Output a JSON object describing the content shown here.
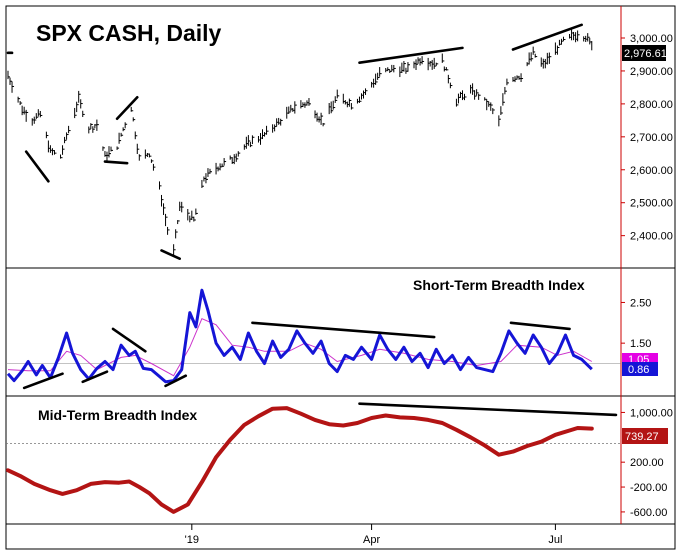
{
  "colors": {
    "axis_line": "#cc0000",
    "price_bars": "#000000",
    "st_breadth": "#1515d6",
    "st_signal": "#cc33cc",
    "mt_breadth": "#b31414",
    "trendline": "#000000",
    "badge_dark": "#000000",
    "badge_blue": "#1515d6",
    "badge_magenta": "#e400e4",
    "badge_red": "#b31414"
  },
  "chart_data": [
    {
      "type": "ohlc",
      "title": "SPX CASH, Daily",
      "y_ticks": [
        "3,000.00",
        "2,900.00",
        "2,800.00",
        "2,700.00",
        "2,600.00",
        "2,500.00",
        "2,400.00"
      ],
      "y_tick_values": [
        3000,
        2900,
        2800,
        2700,
        2600,
        2500,
        2400
      ],
      "ylim": [
        2320,
        3085
      ],
      "last_value_label": "2,976.61",
      "last_value": 2976.61,
      "x_labels": [
        "'19",
        "Apr",
        "Jul"
      ],
      "x_label_positions": [
        "2019-01-02",
        "2019-04-01",
        "2019-07-01"
      ],
      "x_range": [
        "2018-10-03",
        "2019-07-31"
      ],
      "series": [
        {
          "values": [
            [
              "2018-10-03",
              2888
            ],
            [
              "2018-10-10",
              2785
            ],
            [
              "2018-10-15",
              2752
            ],
            [
              "2018-10-19",
              2768
            ],
            [
              "2018-10-24",
              2656
            ],
            [
              "2018-10-29",
              2641
            ],
            [
              "2018-11-02",
              2723
            ],
            [
              "2018-11-07",
              2813
            ],
            [
              "2018-11-12",
              2726
            ],
            [
              "2018-11-16",
              2736
            ],
            [
              "2018-11-20",
              2641
            ],
            [
              "2018-11-26",
              2673
            ],
            [
              "2018-12-03",
              2790
            ],
            [
              "2018-12-07",
              2633
            ],
            [
              "2018-12-12",
              2651
            ],
            [
              "2018-12-17",
              2545
            ],
            [
              "2018-12-21",
              2416
            ],
            [
              "2018-12-24",
              2351
            ],
            [
              "2018-12-27",
              2488
            ],
            [
              "2019-01-03",
              2447
            ],
            [
              "2019-01-08",
              2574
            ],
            [
              "2019-01-15",
              2610
            ],
            [
              "2019-01-22",
              2633
            ],
            [
              "2019-01-30",
              2681
            ],
            [
              "2019-02-07",
              2706
            ],
            [
              "2019-02-14",
              2745
            ],
            [
              "2019-02-22",
              2792
            ],
            [
              "2019-03-01",
              2803
            ],
            [
              "2019-03-08",
              2743
            ],
            [
              "2019-03-15",
              2822
            ],
            [
              "2019-03-22",
              2800
            ],
            [
              "2019-03-29",
              2834
            ],
            [
              "2019-04-05",
              2892
            ],
            [
              "2019-04-12",
              2907
            ],
            [
              "2019-04-19",
              2905
            ],
            [
              "2019-04-26",
              2940
            ],
            [
              "2019-05-01",
              2923
            ],
            [
              "2019-05-06",
              2932
            ],
            [
              "2019-05-13",
              2811
            ],
            [
              "2019-05-20",
              2840
            ],
            [
              "2019-05-24",
              2826
            ],
            [
              "2019-05-30",
              2788
            ],
            [
              "2019-06-03",
              2744
            ],
            [
              "2019-06-07",
              2873
            ],
            [
              "2019-06-14",
              2887
            ],
            [
              "2019-06-20",
              2954
            ],
            [
              "2019-06-25",
              2917
            ],
            [
              "2019-07-01",
              2964
            ],
            [
              "2019-07-05",
              2990
            ],
            [
              "2019-07-12",
              3013
            ],
            [
              "2019-07-16",
              3004
            ],
            [
              "2019-07-19",
              2976.61
            ]
          ]
        }
      ],
      "trendlines": [
        [
          "2018-10-03",
          2955,
          "2018-10-05",
          2955
        ],
        [
          "2018-10-12",
          2655,
          "2018-10-23",
          2565
        ],
        [
          "2018-11-20",
          2625,
          "2018-12-01",
          2620
        ],
        [
          "2018-11-26",
          2755,
          "2018-12-06",
          2820
        ],
        [
          "2018-12-18",
          2355,
          "2018-12-27",
          2330
        ],
        [
          "2019-03-26",
          2925,
          "2019-05-16",
          2970
        ],
        [
          "2019-06-10",
          2965,
          "2019-07-14",
          3040
        ]
      ]
    },
    {
      "type": "line",
      "title": "Short-Term Breadth Index",
      "y_ticks": [
        "2.50",
        "1.50"
      ],
      "y_tick_values": [
        2.5,
        1.5
      ],
      "ylim": [
        0.3,
        3.15
      ],
      "reference_line": 1.0,
      "badges": [
        "1.05",
        "0.86"
      ],
      "badge_values": [
        1.05,
        0.86
      ],
      "series": [
        {
          "name": "breadth",
          "values": [
            [
              "2018-10-03",
              0.75
            ],
            [
              "2018-10-06",
              0.58
            ],
            [
              "2018-10-10",
              0.82
            ],
            [
              "2018-10-13",
              1.05
            ],
            [
              "2018-10-17",
              0.72
            ],
            [
              "2018-10-20",
              0.95
            ],
            [
              "2018-10-24",
              0.65
            ],
            [
              "2018-10-28",
              1.15
            ],
            [
              "2018-11-01",
              1.75
            ],
            [
              "2018-11-04",
              1.25
            ],
            [
              "2018-11-08",
              0.85
            ],
            [
              "2018-11-12",
              0.62
            ],
            [
              "2018-11-16",
              0.88
            ],
            [
              "2018-11-20",
              1.05
            ],
            [
              "2018-11-24",
              0.85
            ],
            [
              "2018-11-28",
              1.45
            ],
            [
              "2018-12-02",
              1.2
            ],
            [
              "2018-12-05",
              1.3
            ],
            [
              "2018-12-09",
              0.88
            ],
            [
              "2018-12-13",
              0.85
            ],
            [
              "2018-12-17",
              0.68
            ],
            [
              "2018-12-20",
              0.55
            ],
            [
              "2018-12-24",
              0.58
            ],
            [
              "2018-12-28",
              0.85
            ],
            [
              "2019-01-01",
              2.25
            ],
            [
              "2019-01-04",
              1.9
            ],
            [
              "2019-01-07",
              2.8
            ],
            [
              "2019-01-10",
              2.3
            ],
            [
              "2019-01-14",
              1.5
            ],
            [
              "2019-01-18",
              1.2
            ],
            [
              "2019-01-22",
              1.4
            ],
            [
              "2019-01-26",
              1.1
            ],
            [
              "2019-01-30",
              1.75
            ],
            [
              "2019-02-03",
              1.3
            ],
            [
              "2019-02-07",
              1.0
            ],
            [
              "2019-02-11",
              1.55
            ],
            [
              "2019-02-15",
              1.15
            ],
            [
              "2019-02-19",
              1.35
            ],
            [
              "2019-02-23",
              1.8
            ],
            [
              "2019-02-27",
              1.5
            ],
            [
              "2019-03-03",
              1.25
            ],
            [
              "2019-03-07",
              1.55
            ],
            [
              "2019-03-11",
              1.0
            ],
            [
              "2019-03-15",
              0.8
            ],
            [
              "2019-03-19",
              1.2
            ],
            [
              "2019-03-23",
              1.1
            ],
            [
              "2019-03-27",
              1.4
            ],
            [
              "2019-04-01",
              1.1
            ],
            [
              "2019-04-05",
              1.7
            ],
            [
              "2019-04-09",
              1.35
            ],
            [
              "2019-04-13",
              1.1
            ],
            [
              "2019-04-17",
              1.4
            ],
            [
              "2019-04-21",
              1.05
            ],
            [
              "2019-04-25",
              1.25
            ],
            [
              "2019-04-29",
              0.9
            ],
            [
              "2019-05-03",
              1.35
            ],
            [
              "2019-05-07",
              1.0
            ],
            [
              "2019-05-11",
              1.2
            ],
            [
              "2019-05-15",
              0.85
            ],
            [
              "2019-05-19",
              1.15
            ],
            [
              "2019-05-23",
              0.9
            ],
            [
              "2019-05-27",
              0.85
            ],
            [
              "2019-05-31",
              0.8
            ],
            [
              "2019-06-04",
              1.25
            ],
            [
              "2019-06-08",
              1.8
            ],
            [
              "2019-06-12",
              1.5
            ],
            [
              "2019-06-16",
              1.25
            ],
            [
              "2019-06-20",
              1.7
            ],
            [
              "2019-06-24",
              1.4
            ],
            [
              "2019-06-28",
              1.0
            ],
            [
              "2019-07-02",
              1.25
            ],
            [
              "2019-07-06",
              1.7
            ],
            [
              "2019-07-10",
              1.2
            ],
            [
              "2019-07-14",
              1.1
            ],
            [
              "2019-07-19",
              0.86
            ]
          ]
        },
        {
          "name": "signal",
          "values": [
            [
              "2018-10-03",
              0.85
            ],
            [
              "2018-10-13",
              0.82
            ],
            [
              "2018-10-24",
              0.82
            ],
            [
              "2018-11-01",
              1.3
            ],
            [
              "2018-11-08",
              1.2
            ],
            [
              "2018-11-16",
              0.85
            ],
            [
              "2018-11-28",
              1.15
            ],
            [
              "2018-12-05",
              1.2
            ],
            [
              "2018-12-13",
              1.0
            ],
            [
              "2018-12-24",
              0.7
            ],
            [
              "2019-01-01",
              1.4
            ],
            [
              "2019-01-07",
              2.1
            ],
            [
              "2019-01-14",
              1.95
            ],
            [
              "2019-01-22",
              1.45
            ],
            [
              "2019-01-30",
              1.4
            ],
            [
              "2019-02-07",
              1.3
            ],
            [
              "2019-02-19",
              1.3
            ],
            [
              "2019-02-27",
              1.5
            ],
            [
              "2019-03-07",
              1.35
            ],
            [
              "2019-03-15",
              1.05
            ],
            [
              "2019-03-27",
              1.2
            ],
            [
              "2019-04-05",
              1.35
            ],
            [
              "2019-04-17",
              1.25
            ],
            [
              "2019-04-29",
              1.1
            ],
            [
              "2019-05-11",
              1.05
            ],
            [
              "2019-05-23",
              0.95
            ],
            [
              "2019-06-04",
              1.05
            ],
            [
              "2019-06-12",
              1.45
            ],
            [
              "2019-06-24",
              1.4
            ],
            [
              "2019-07-02",
              1.2
            ],
            [
              "2019-07-10",
              1.3
            ],
            [
              "2019-07-19",
              1.05
            ]
          ]
        }
      ],
      "trendlines": [
        [
          "2018-10-11",
          0.4,
          "2018-10-30",
          0.75
        ],
        [
          "2018-11-09",
          0.55,
          "2018-11-21",
          0.8
        ],
        [
          "2018-11-24",
          1.85,
          "2018-12-10",
          1.3
        ],
        [
          "2018-12-20",
          0.45,
          "2018-12-30",
          0.7
        ],
        [
          "2019-02-01",
          2.0,
          "2019-05-02",
          1.65
        ],
        [
          "2019-06-09",
          2.0,
          "2019-07-08",
          1.85
        ]
      ]
    },
    {
      "type": "line",
      "title": "Mid-Term Breadth Index",
      "y_ticks": [
        "1,000.00",
        "200.00",
        "-200.00",
        "-600.00"
      ],
      "y_tick_values": [
        1000,
        200,
        -200,
        -600
      ],
      "ylim": [
        -730,
        1200
      ],
      "reference_line": 500,
      "last_value_label": "739.27",
      "last_value": 739.27,
      "series": [
        {
          "name": "mid-term",
          "values": [
            [
              "2018-10-03",
              70
            ],
            [
              "2018-10-09",
              -20
            ],
            [
              "2018-10-16",
              -150
            ],
            [
              "2018-10-24",
              -250
            ],
            [
              "2018-10-30",
              -310
            ],
            [
              "2018-11-06",
              -250
            ],
            [
              "2018-11-13",
              -150
            ],
            [
              "2018-11-20",
              -120
            ],
            [
              "2018-11-27",
              -130
            ],
            [
              "2018-12-02",
              -110
            ],
            [
              "2018-12-07",
              -200
            ],
            [
              "2018-12-12",
              -300
            ],
            [
              "2018-12-18",
              -480
            ],
            [
              "2018-12-24",
              -600
            ],
            [
              "2018-12-31",
              -480
            ],
            [
              "2019-01-07",
              -120
            ],
            [
              "2019-01-14",
              280
            ],
            [
              "2019-01-21",
              560
            ],
            [
              "2019-01-28",
              800
            ],
            [
              "2019-02-04",
              940
            ],
            [
              "2019-02-11",
              1060
            ],
            [
              "2019-02-18",
              1070
            ],
            [
              "2019-02-25",
              980
            ],
            [
              "2019-03-04",
              880
            ],
            [
              "2019-03-11",
              810
            ],
            [
              "2019-03-18",
              790
            ],
            [
              "2019-03-25",
              830
            ],
            [
              "2019-04-01",
              910
            ],
            [
              "2019-04-08",
              950
            ],
            [
              "2019-04-15",
              920
            ],
            [
              "2019-04-22",
              910
            ],
            [
              "2019-04-29",
              880
            ],
            [
              "2019-05-06",
              830
            ],
            [
              "2019-05-13",
              720
            ],
            [
              "2019-05-20",
              600
            ],
            [
              "2019-05-27",
              470
            ],
            [
              "2019-06-03",
              320
            ],
            [
              "2019-06-10",
              370
            ],
            [
              "2019-06-17",
              460
            ],
            [
              "2019-06-24",
              530
            ],
            [
              "2019-07-01",
              640
            ],
            [
              "2019-07-08",
              710
            ],
            [
              "2019-07-12",
              750
            ],
            [
              "2019-07-19",
              739.27
            ]
          ]
        }
      ],
      "trendlines": [
        [
          "2019-03-26",
          1140,
          "2019-07-31",
          960
        ]
      ]
    }
  ]
}
